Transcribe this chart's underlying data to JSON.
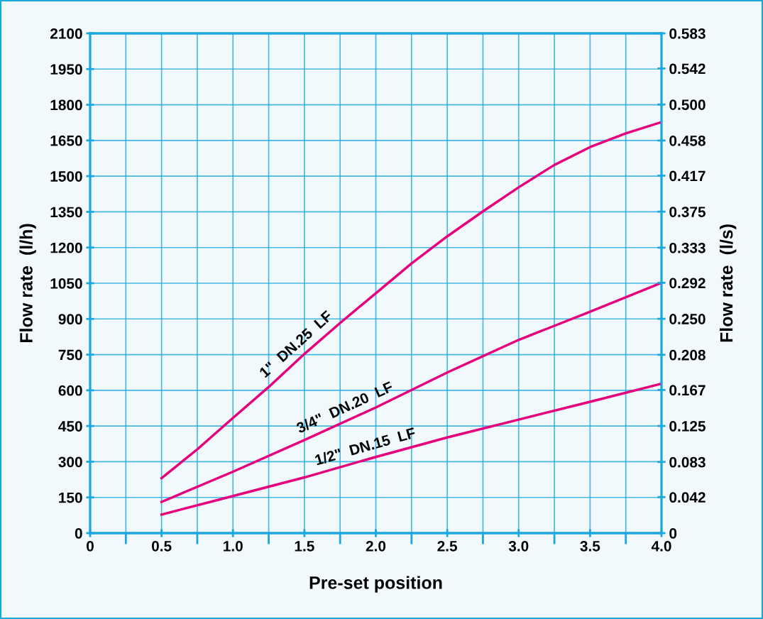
{
  "chart_data": {
    "type": "line",
    "xlabel": "Pre-set position",
    "ylabel": "Flow rate  (l/h)",
    "y2label": "Flow rate  (l/s)",
    "x": [
      0.5,
      0.75,
      1.0,
      1.25,
      1.5,
      1.75,
      2.0,
      2.25,
      2.5,
      2.75,
      3.0,
      3.25,
      3.5,
      3.75,
      4.0
    ],
    "series": [
      {
        "name": "1\"  DN.25  LF",
        "color": "#e6007e",
        "values": [
          231,
          352,
          484,
          614,
          753,
          883,
          1008,
          1133,
          1247,
          1352,
          1453,
          1547,
          1622,
          1680,
          1727
        ]
      },
      {
        "name": "3/4\"  DN.20  LF",
        "color": "#e6007e",
        "x": [
          0.5,
          1.0,
          1.5,
          2.0,
          2.5,
          3.0,
          3.5,
          4.0
        ],
        "values": [
          131,
          258,
          391,
          528,
          675,
          812,
          930,
          1052
        ]
      },
      {
        "name": "1/2\"  DN.15  LF",
        "color": "#e6007e",
        "x": [
          0.5,
          1.0,
          1.5,
          2.0,
          2.5,
          3.0,
          3.5,
          4.0
        ],
        "values": [
          78,
          156,
          234,
          320,
          402,
          477,
          552,
          628
        ]
      }
    ],
    "xlim": [
      0,
      4.0
    ],
    "xticks": [
      0,
      0.5,
      {
        "value": 1.0,
        "label": "1.0"
      },
      1.5,
      {
        "value": 2.0,
        "label": "2.0"
      },
      2.5,
      {
        "value": 3.0,
        "label": "3.0"
      },
      3.5,
      {
        "value": 4.0,
        "label": "4.0"
      }
    ],
    "ylim": [
      0,
      2100
    ],
    "yticks": [
      0,
      150,
      300,
      450,
      600,
      750,
      900,
      1050,
      1200,
      1350,
      1500,
      1650,
      1800,
      1950,
      2100
    ],
    "y2lim": [
      0,
      0.583
    ],
    "y2ticks": [
      0,
      0.042,
      0.083,
      0.125,
      0.167,
      0.208,
      {
        "value": 0.25,
        "label": "0.250"
      },
      0.292,
      0.333,
      0.375,
      0.417,
      0.458,
      {
        "value": 0.5,
        "label": "0.500"
      },
      0.542,
      0.583
    ],
    "grid": true,
    "legend": false,
    "marker": "none",
    "line_style": "solid"
  }
}
